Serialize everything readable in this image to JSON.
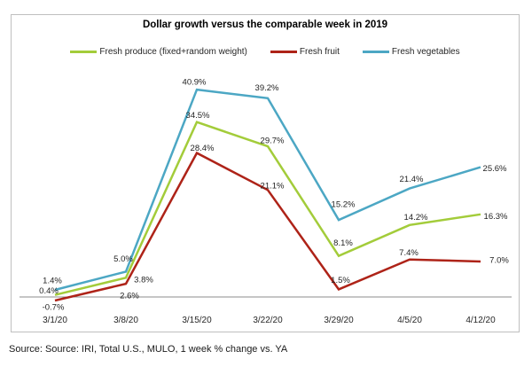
{
  "page": {
    "source_note": "Source: Source: IRI, Total U.S., MULO, 1 week % change vs. YA"
  },
  "chart_data": {
    "type": "line",
    "title": "Dollar growth versus the comparable week in 2019",
    "xlabel": "",
    "ylabel": "",
    "value_suffix": "%",
    "legend_position": "top",
    "grid": false,
    "axis_color": "#8c8c8c",
    "label_color": "#1f1f1f",
    "tick_color": "#262626",
    "categories": [
      "3/1/20",
      "3/8/20",
      "3/15/20",
      "3/22/20",
      "3/29/20",
      "4/5/20",
      "4/12/20"
    ],
    "series": [
      {
        "name": "Fresh produce (fixed+random weight)",
        "color": "#a3cc3a",
        "values": [
          0.4,
          3.8,
          34.5,
          29.7,
          8.1,
          14.2,
          16.3
        ]
      },
      {
        "name": "Fresh fruit",
        "color": "#ae2318",
        "values": [
          -0.7,
          2.6,
          28.4,
          21.1,
          1.5,
          7.4,
          7.0
        ]
      },
      {
        "name": "Fresh vegetables",
        "color": "#4ca7c4",
        "values": [
          1.4,
          5.0,
          40.9,
          39.2,
          15.2,
          21.4,
          25.6
        ]
      }
    ],
    "label_offsets": [
      [
        [
          -7,
          -5
        ],
        [
          20,
          2
        ],
        [
          1,
          -8
        ],
        [
          5,
          -7
        ],
        [
          5,
          -15
        ],
        [
          7,
          -9
        ],
        [
          17,
          2
        ]
      ],
      [
        [
          -2,
          7
        ],
        [
          4,
          13
        ],
        [
          6,
          -6
        ],
        [
          5,
          -5
        ],
        [
          2,
          -11
        ],
        [
          -1,
          -8
        ],
        [
          21,
          -2
        ]
      ],
      [
        [
          -3,
          -11
        ],
        [
          -3,
          -15
        ],
        [
          -3,
          -9
        ],
        [
          -1,
          -12
        ],
        [
          5,
          -18
        ],
        [
          2,
          -11
        ],
        [
          16,
          1
        ]
      ]
    ]
  }
}
